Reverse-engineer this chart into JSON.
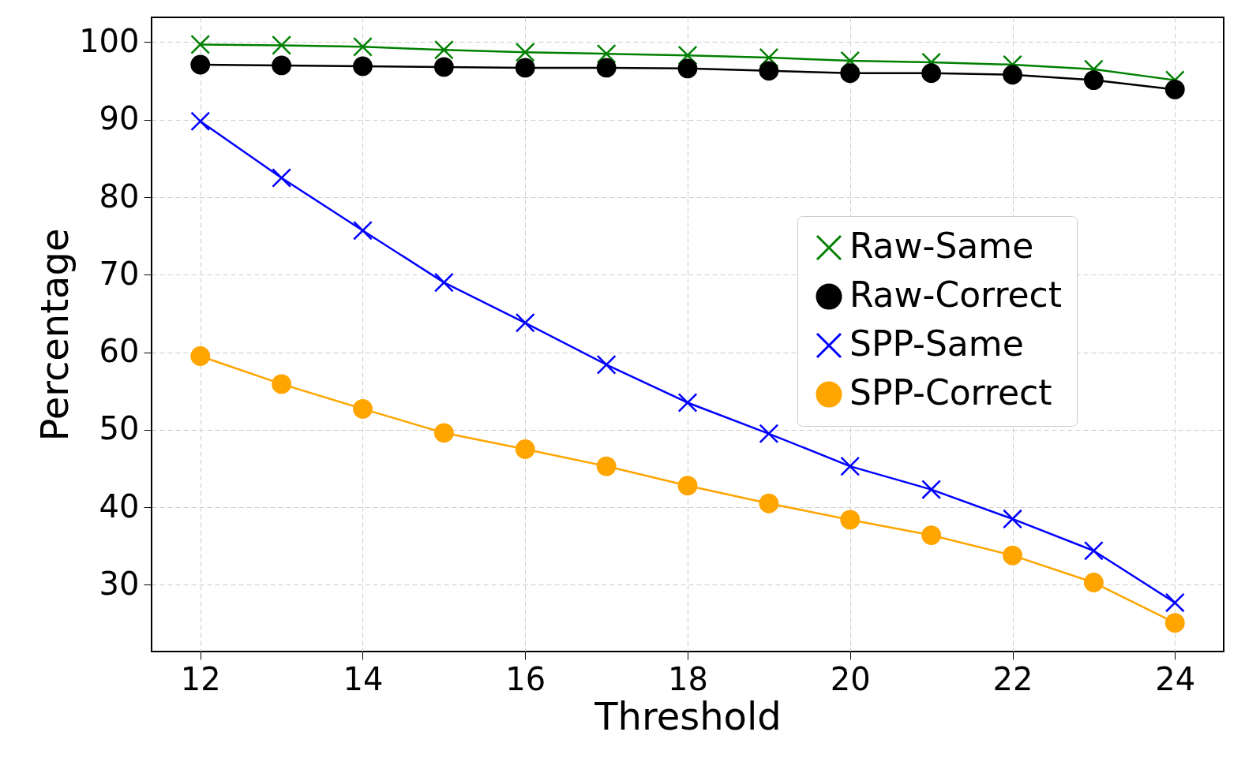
{
  "chart_data": {
    "type": "line",
    "xlabel": "Threshold",
    "ylabel": "Percentage",
    "x": [
      12,
      13,
      14,
      15,
      16,
      17,
      18,
      19,
      20,
      21,
      22,
      23,
      24
    ],
    "series": [
      {
        "name": "Raw-Same",
        "color": "#008000",
        "marker": "cross",
        "values": [
          99.7,
          99.6,
          99.4,
          99.0,
          98.7,
          98.5,
          98.3,
          98.0,
          97.6,
          97.4,
          97.1,
          96.5,
          95.1
        ]
      },
      {
        "name": "Raw-Correct",
        "color": "#000000",
        "marker": "circle",
        "values": [
          97.1,
          97.0,
          96.9,
          96.8,
          96.7,
          96.7,
          96.6,
          96.3,
          96.0,
          96.0,
          95.8,
          95.1,
          93.9
        ]
      },
      {
        "name": "SPP-Same",
        "color": "#0000ff",
        "marker": "cross",
        "values": [
          89.8,
          82.5,
          75.7,
          69.0,
          63.8,
          58.4,
          53.5,
          49.5,
          45.3,
          42.3,
          38.5,
          34.4,
          27.7
        ]
      },
      {
        "name": "SPP-Correct",
        "color": "#ffa500",
        "marker": "circle",
        "values": [
          59.5,
          55.9,
          52.7,
          49.6,
          47.5,
          45.3,
          42.8,
          40.5,
          38.4,
          36.4,
          33.8,
          30.3,
          25.1
        ]
      }
    ],
    "xlim": [
      11.4,
      24.6
    ],
    "xticks": [
      12,
      14,
      16,
      18,
      20,
      22,
      24
    ],
    "ylim": [
      21.4,
      103.2
    ],
    "yticks": [
      30,
      40,
      50,
      60,
      70,
      80,
      90,
      100
    ],
    "grid": true,
    "legend": "right",
    "line_style": "solid"
  }
}
